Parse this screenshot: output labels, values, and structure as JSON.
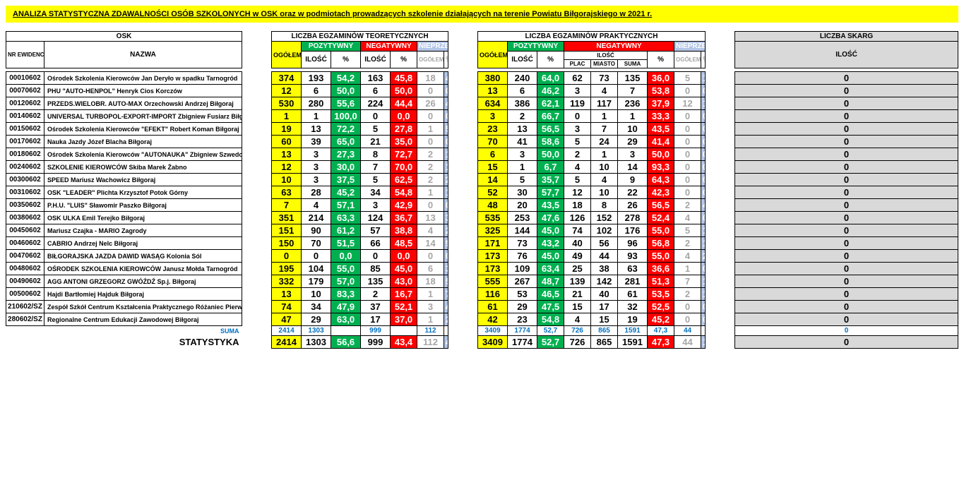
{
  "title": "ANALIZA STATYSTYCZNA ZDAWALNOŚCI OSÓB SZKOLONYCH w OSK oraz w podmiotach prowadzących szkolenie działających na terenie Powiatu Biłgorajskiego w 2021 r.",
  "colors": {
    "yellow": "#ffff00",
    "green": "#00b050",
    "red": "#ff0000",
    "lightblue": "#b4c6e7",
    "gray": "#d9d9d9",
    "mutetext": "#a6a6a6",
    "blue": "#0070c0",
    "white": "#ffffff"
  },
  "headers": {
    "osk": "OSK",
    "teor": "LICZBA EGZAMINÓW TEORETYCZNYCH",
    "prakt": "LICZBA EGZAMINÓW PRAKTYCZNYCH",
    "skarg": "LICZBA SKARG",
    "nr": "NR EWIDENCYJNY",
    "nazwa": "NAZWA",
    "ogolem": "OGÓŁEM",
    "poz": "POZYTYWNY",
    "neg": "NEGATYWNY",
    "nieprz": "NIEPRZEPR.",
    "ilosc": "ILOŚĆ",
    "pct": "%",
    "plac": "PLAC",
    "miasto": "MIASTO",
    "suma": "SUMA"
  },
  "rows": [
    {
      "id": "00010602",
      "name": "Ośrodek Szkolenia Kierowców Jan Deryło w spadku Tarnogród",
      "t_og": "374",
      "t_pi": "193",
      "t_pp": "54,2",
      "t_ni": "163",
      "t_np": "45,8",
      "t_uo": "18",
      "t_up": "4,8",
      "p_og": "380",
      "p_pi": "240",
      "p_pp": "64,0",
      "p_pl": "62",
      "p_mi": "73",
      "p_su": "135",
      "p_np": "36,0",
      "p_uo": "5",
      "p_up": "1,3",
      "sk": "0"
    },
    {
      "id": "00070602",
      "name": "PHU \"AUTO-HENPOL\" Henryk Cios Korczów",
      "t_og": "12",
      "t_pi": "6",
      "t_pp": "50,0",
      "t_ni": "6",
      "t_np": "50,0",
      "t_uo": "0",
      "t_up": "0,0",
      "p_og": "13",
      "p_pi": "6",
      "p_pp": "46,2",
      "p_pl": "3",
      "p_mi": "4",
      "p_su": "7",
      "p_np": "53,8",
      "p_uo": "0",
      "p_up": "0,0",
      "sk": "0"
    },
    {
      "id": "00120602",
      "name": "PRZEDS.WIELOBR. AUTO-MAX Orzechowski  Andrzej Biłgoraj",
      "t_og": "530",
      "t_pi": "280",
      "t_pp": "55,6",
      "t_ni": "224",
      "t_np": "44,4",
      "t_uo": "26",
      "t_up": "4,9",
      "p_og": "634",
      "p_pi": "386",
      "p_pp": "62,1",
      "p_pl": "119",
      "p_mi": "117",
      "p_su": "236",
      "p_np": "37,9",
      "p_uo": "12",
      "p_up": "1,9",
      "sk": "0"
    },
    {
      "id": "00140602",
      "name": "UNIVERSAL TURBOPOL-EXPORT-IMPORT Zbigniew Fusiarz Biłgoraj",
      "t_og": "1",
      "t_pi": "1",
      "t_pp": "100,0",
      "t_ni": "0",
      "t_np": "0,0",
      "t_uo": "0",
      "t_up": "0,0",
      "p_og": "3",
      "p_pi": "2",
      "p_pp": "66,7",
      "p_pl": "0",
      "p_mi": "1",
      "p_su": "1",
      "p_np": "33,3",
      "p_uo": "0",
      "p_up": "0,0",
      "sk": "0"
    },
    {
      "id": "00150602",
      "name": "Ośrodek Szkolenia Kierowców \"EFEKT\" Robert Koman Biłgoraj",
      "t_og": "19",
      "t_pi": "13",
      "t_pp": "72,2",
      "t_ni": "5",
      "t_np": "27,8",
      "t_uo": "1",
      "t_up": "5,3",
      "p_og": "23",
      "p_pi": "13",
      "p_pp": "56,5",
      "p_pl": "3",
      "p_mi": "7",
      "p_su": "10",
      "p_np": "43,5",
      "p_uo": "0",
      "p_up": "0,0",
      "sk": "0"
    },
    {
      "id": "00170602",
      "name": "Nauka Jazdy Józef Blacha Biłgoraj",
      "t_og": "60",
      "t_pi": "39",
      "t_pp": "65,0",
      "t_ni": "21",
      "t_np": "35,0",
      "t_uo": "0",
      "t_up": "0,0",
      "p_og": "70",
      "p_pi": "41",
      "p_pp": "58,6",
      "p_pl": "5",
      "p_mi": "24",
      "p_su": "29",
      "p_np": "41,4",
      "p_uo": "0",
      "p_up": "0,0",
      "sk": "0"
    },
    {
      "id": "00180602",
      "name": "Ośrodek Szkolenia Kierowców \"AUTONAUKA\" Zbigniew Szwedo Biłgoraj",
      "t_og": "13",
      "t_pi": "3",
      "t_pp": "27,3",
      "t_ni": "8",
      "t_np": "72,7",
      "t_uo": "2",
      "t_up": "15,4",
      "p_og": "6",
      "p_pi": "3",
      "p_pp": "50,0",
      "p_pl": "2",
      "p_mi": "1",
      "p_su": "3",
      "p_np": "50,0",
      "p_uo": "0",
      "p_up": "0,0",
      "sk": "0"
    },
    {
      "id": "00240602",
      "name": "SZKOLENIE KIEROWCÓW Skiba Marek  Żabno",
      "t_og": "12",
      "t_pi": "3",
      "t_pp": "30,0",
      "t_ni": "7",
      "t_np": "70,0",
      "t_uo": "2",
      "t_up": "16,7",
      "p_og": "15",
      "p_pi": "1",
      "p_pp": "6,7",
      "p_pl": "4",
      "p_mi": "10",
      "p_su": "14",
      "p_np": "93,3",
      "p_uo": "0",
      "p_up": "0,0",
      "sk": "0"
    },
    {
      "id": "00300602",
      "name": "SPEED Mariusz Wachowicz  Biłgoraj",
      "t_og": "10",
      "t_pi": "3",
      "t_pp": "37,5",
      "t_ni": "5",
      "t_np": "62,5",
      "t_uo": "2",
      "t_up": "20,0",
      "p_og": "14",
      "p_pi": "5",
      "p_pp": "35,7",
      "p_pl": "5",
      "p_mi": "4",
      "p_su": "9",
      "p_np": "64,3",
      "p_uo": "0",
      "p_up": "0,0",
      "sk": "0"
    },
    {
      "id": "00310602",
      "name": "OSK \"LEADER\" Plichta Krzysztof  Potok Górny",
      "t_og": "63",
      "t_pi": "28",
      "t_pp": "45,2",
      "t_ni": "34",
      "t_np": "54,8",
      "t_uo": "1",
      "t_up": "1,6",
      "p_og": "52",
      "p_pi": "30",
      "p_pp": "57,7",
      "p_pl": "12",
      "p_mi": "10",
      "p_su": "22",
      "p_np": "42,3",
      "p_uo": "0",
      "p_up": "0,0",
      "sk": "0"
    },
    {
      "id": "00350602",
      "name": "P.H.U. \"LUIS\" Sławomir Paszko Biłgoraj",
      "t_og": "7",
      "t_pi": "4",
      "t_pp": "57,1",
      "t_ni": "3",
      "t_np": "42,9",
      "t_uo": "0",
      "t_up": "0,0",
      "p_og": "48",
      "p_pi": "20",
      "p_pp": "43,5",
      "p_pl": "18",
      "p_mi": "8",
      "p_su": "26",
      "p_np": "56,5",
      "p_uo": "2",
      "p_up": "4,2",
      "sk": "0"
    },
    {
      "id": "00380602",
      "name": "OSK ULKA  Emil Terejko Biłgoraj",
      "t_og": "351",
      "t_pi": "214",
      "t_pp": "63,3",
      "t_ni": "124",
      "t_np": "36,7",
      "t_uo": "13",
      "t_up": "3,7",
      "p_og": "535",
      "p_pi": "253",
      "p_pp": "47,6",
      "p_pl": "126",
      "p_mi": "152",
      "p_su": "278",
      "p_np": "52,4",
      "p_uo": "4",
      "p_up": "0,7",
      "sk": "0"
    },
    {
      "id": "00450602",
      "name": "Mariusz Czajka - MARIO Zagrody",
      "t_og": "151",
      "t_pi": "90",
      "t_pp": "61,2",
      "t_ni": "57",
      "t_np": "38,8",
      "t_uo": "4",
      "t_up": "2,6",
      "p_og": "325",
      "p_pi": "144",
      "p_pp": "45,0",
      "p_pl": "74",
      "p_mi": "102",
      "p_su": "176",
      "p_np": "55,0",
      "p_uo": "5",
      "p_up": "1,5",
      "sk": "0"
    },
    {
      "id": "00460602",
      "name": "CABRIO  Andrzej Nelc  Biłgoraj",
      "t_og": "150",
      "t_pi": "70",
      "t_pp": "51,5",
      "t_ni": "66",
      "t_np": "48,5",
      "t_uo": "14",
      "t_up": "9,3",
      "p_og": "171",
      "p_pi": "73",
      "p_pp": "43,2",
      "p_pl": "40",
      "p_mi": "56",
      "p_su": "96",
      "p_np": "56,8",
      "p_uo": "2",
      "p_up": "1,2",
      "sk": "0"
    },
    {
      "id": "00470602",
      "name": "BIŁGORAJSKA JAZDA DAWID WASĄG Kolonia Sól",
      "t_og": "0",
      "t_pi": "0",
      "t_pp": "0,0",
      "t_ni": "0",
      "t_np": "0,0",
      "t_uo": "0",
      "t_up": "0,0",
      "p_og": "173",
      "p_pi": "76",
      "p_pp": "45,0",
      "p_pl": "49",
      "p_mi": "44",
      "p_su": "93",
      "p_np": "55,0",
      "p_uo": "4",
      "p_up": "2,3",
      "sk": "0"
    },
    {
      "id": "00480602",
      "name": "OŚRODEK SZKOLENIA KIEROWCÓW Janusz Mołda Tarnogród",
      "t_og": "195",
      "t_pi": "104",
      "t_pp": "55,0",
      "t_ni": "85",
      "t_np": "45,0",
      "t_uo": "6",
      "t_up": "3,1",
      "p_og": "173",
      "p_pi": "109",
      "p_pp": "63,4",
      "p_pl": "25",
      "p_mi": "38",
      "p_su": "63",
      "p_np": "36,6",
      "p_uo": "1",
      "p_up": "0,6",
      "sk": "0"
    },
    {
      "id": "00490602",
      "name": "AGG ANTONI GRZEGORZ GWÓŹDŹ Sp.j. Biłgoraj",
      "t_og": "332",
      "t_pi": "179",
      "t_pp": "57,0",
      "t_ni": "135",
      "t_np": "43,0",
      "t_uo": "18",
      "t_up": "5,4",
      "p_og": "555",
      "p_pi": "267",
      "p_pp": "48,7",
      "p_pl": "139",
      "p_mi": "142",
      "p_su": "281",
      "p_np": "51,3",
      "p_uo": "7",
      "p_up": "1,3",
      "sk": "0"
    },
    {
      "id": "00500602",
      "name": "Hajdi Bartłomiej Hajduk Biłgoraj",
      "t_og": "13",
      "t_pi": "10",
      "t_pp": "83,3",
      "t_ni": "2",
      "t_np": "16,7",
      "t_uo": "1",
      "t_up": "7,7",
      "p_og": "116",
      "p_pi": "53",
      "p_pp": "46,5",
      "p_pl": "21",
      "p_mi": "40",
      "p_su": "61",
      "p_np": "53,5",
      "p_uo": "2",
      "p_up": "1,7",
      "sk": "0"
    },
    {
      "id": "210602/SZ",
      "name": "Zespół Szkół Centrum Kształcenia Praktycznego Różaniec Pierwszy",
      "t_og": "74",
      "t_pi": "34",
      "t_pp": "47,9",
      "t_ni": "37",
      "t_np": "52,1",
      "t_uo": "3",
      "t_up": "4,1",
      "p_og": "61",
      "p_pi": "29",
      "p_pp": "47,5",
      "p_pl": "15",
      "p_mi": "17",
      "p_su": "32",
      "p_np": "52,5",
      "p_uo": "0",
      "p_up": "0,0",
      "sk": "0"
    },
    {
      "id": "280602/SZ",
      "name": "Regionalne Centrum Edukacji Zawodowej Biłgoraj",
      "t_og": "47",
      "t_pi": "29",
      "t_pp": "63,0",
      "t_ni": "17",
      "t_np": "37,0",
      "t_uo": "1",
      "t_up": "2,1",
      "p_og": "42",
      "p_pi": "23",
      "p_pp": "54,8",
      "p_pl": "4",
      "p_mi": "15",
      "p_su": "19",
      "p_np": "45,2",
      "p_uo": "0",
      "p_up": "0,0",
      "sk": "0"
    }
  ],
  "summary": {
    "suma_label": "SUMA",
    "stat_label": "STATYSTYKA",
    "suma": {
      "t_og": "2414",
      "t_pi": "1303",
      "t_ni": "999",
      "t_uo": "112",
      "p_og": "3409",
      "p_pi": "1774",
      "p_pp": "52,7",
      "p_pl": "726",
      "p_mi": "865",
      "p_su": "1591",
      "p_np": "47,3",
      "p_uo": "44",
      "sk": "0"
    },
    "stat": {
      "t_og": "2414",
      "t_pi": "1303",
      "t_pp": "56,6",
      "t_ni": "999",
      "t_np": "43,4",
      "t_uo": "112",
      "t_up": "4,6",
      "p_og": "3409",
      "p_pi": "1774",
      "p_pp": "52,7",
      "p_pl": "726",
      "p_mi": "865",
      "p_su": "1591",
      "p_np": "47,3",
      "p_uo": "44",
      "p_up": "1,3",
      "sk": "0"
    }
  },
  "colwidths": {
    "id": "54",
    "name": "280",
    "og": "42",
    "std": "42",
    "sm": "38"
  }
}
